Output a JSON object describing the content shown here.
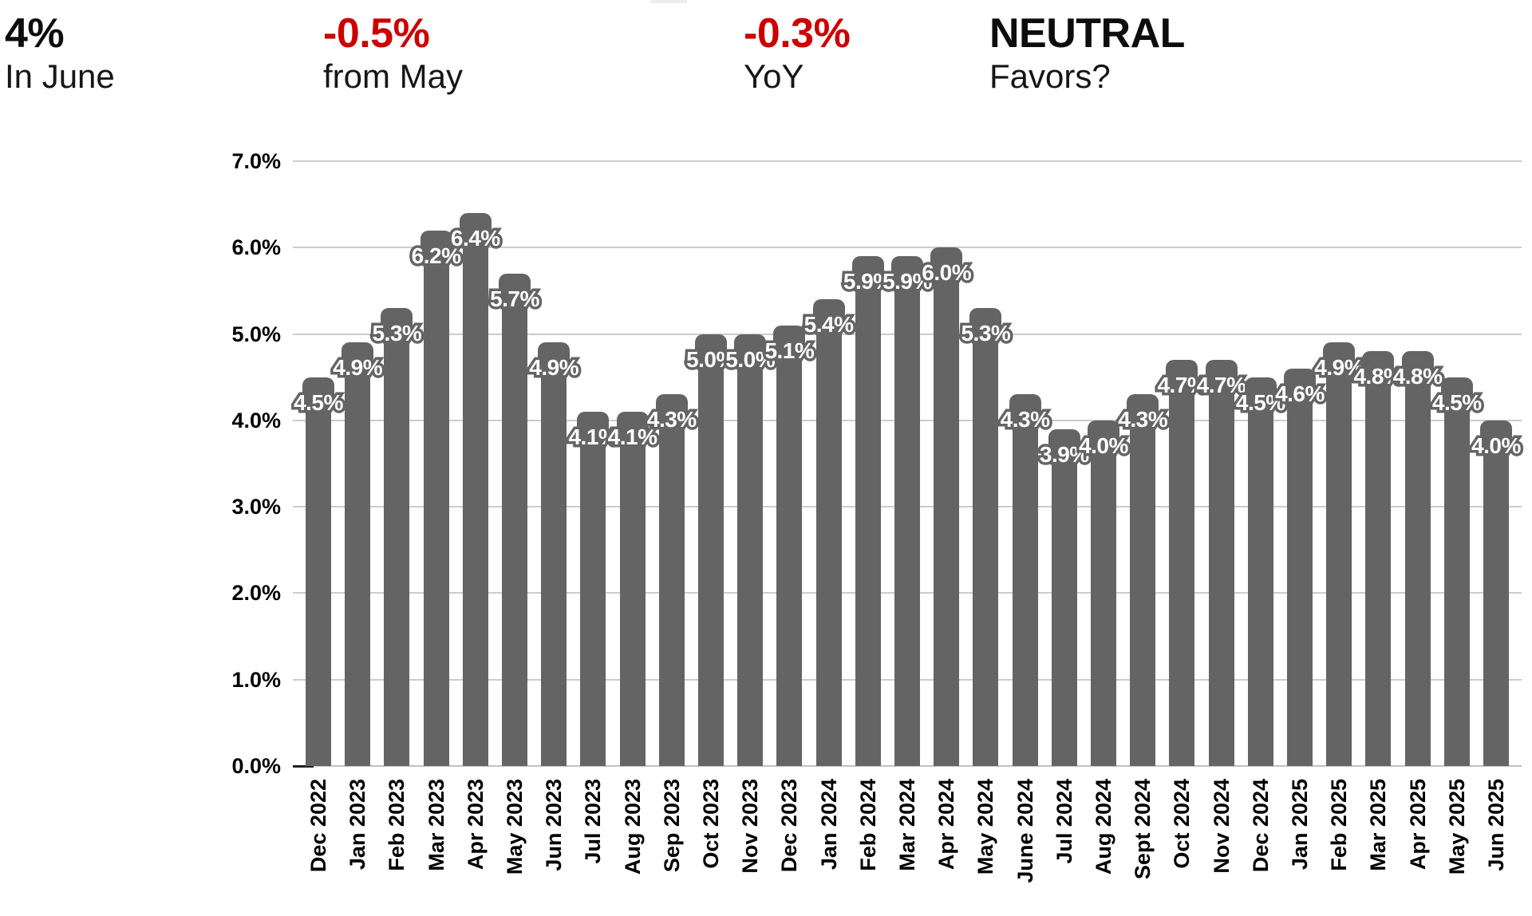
{
  "header": {
    "stats": [
      {
        "value": "4%",
        "label": "In June",
        "value_color": "#0d0d0d"
      },
      {
        "value": "-0.5%",
        "label": "from May",
        "value_color": "#cc0000"
      },
      {
        "value": "-0.3%",
        "label": "YoY",
        "value_color": "#cc0000"
      },
      {
        "value": "NEUTRAL",
        "label": "Favors?",
        "value_color": "#0d0d0d"
      }
    ]
  },
  "chart_data": {
    "type": "bar",
    "categories": [
      "Dec 2022",
      "Jan 2023",
      "Feb 2023",
      "Mar 2023",
      "Apr 2023",
      "May 2023",
      "Jun 2023",
      "Jul 2023",
      "Aug 2023",
      "Sep 2023",
      "Oct 2023",
      "Nov 2023",
      "Dec 2023",
      "Jan 2024",
      "Feb 2024",
      "Mar 2024",
      "Apr 2024",
      "May 2024",
      "June 2024",
      "Jul 2024",
      "Aug 2024",
      "Sept 2024",
      "Oct 2024",
      "Nov 2024",
      "Dec 2024",
      "Jan 2025",
      "Feb 2025",
      "Mar 2025",
      "Apr 2025",
      "May 2025",
      "Jun 2025"
    ],
    "values": [
      4.5,
      4.9,
      5.3,
      6.2,
      6.4,
      5.7,
      4.9,
      4.1,
      4.1,
      4.3,
      5.0,
      5.0,
      5.1,
      5.4,
      5.9,
      5.9,
      6.0,
      5.3,
      4.3,
      3.9,
      4.0,
      4.3,
      4.7,
      4.7,
      4.5,
      4.6,
      4.9,
      4.8,
      4.8,
      4.5,
      4.0
    ],
    "bar_labels": [
      "4.5%",
      "4.9%",
      "5.3%",
      "6.2%",
      "6.4%",
      "5.7%",
      "4.9%",
      "4.1%",
      "4.1%",
      "4.3%",
      "5.0%",
      "5.0%",
      "5.1%",
      "5.4%",
      "5.9%",
      "5.9%",
      "6.0%",
      "5.3%",
      "4.3%",
      "3.9%",
      "4.0%",
      "4.3%",
      "4.7%",
      "4.7%",
      "4.5%",
      "4.6%",
      "4.9%",
      "4.8%",
      "4.8%",
      "4.5%",
      "4.0%"
    ],
    "y_ticks": [
      "7.0%",
      "6.0%",
      "5.0%",
      "4.0%",
      "3.0%",
      "2.0%",
      "1.0%",
      "0.0%"
    ],
    "ylim": [
      0,
      7
    ],
    "grid": true,
    "x_tick_rotation": -90,
    "legend": "none",
    "title": "",
    "xlabel": "",
    "ylabel": "",
    "bar_color": "#646464",
    "gridline_color": "#cccccc",
    "data_label_fill": "#ffffff",
    "data_label_outline": "#646464",
    "axis_text_color": "#000000"
  }
}
